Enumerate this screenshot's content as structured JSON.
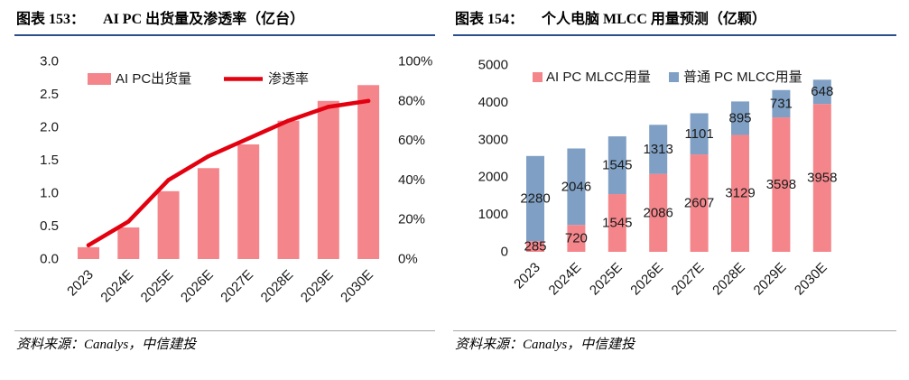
{
  "colors": {
    "title_rule": "#2B4E8C",
    "separator": "#A6A6A6",
    "text": "#1A1A1A"
  },
  "chart_data": [
    {
      "figure_label": "图表 153：",
      "title": "AI PC 出货量及渗透率（亿台）",
      "source": "资料来源：Canalys，中信建投",
      "type": "bar",
      "categories": [
        "2023",
        "2024E",
        "2025E",
        "2026E",
        "2027E",
        "2028E",
        "2029E",
        "2030E"
      ],
      "series": [
        {
          "name": "AI PC出货量",
          "type": "bar",
          "axis": "left",
          "values": [
            0.18,
            0.48,
            1.03,
            1.38,
            1.74,
            2.1,
            2.4,
            2.64
          ],
          "color": "#F4868B"
        },
        {
          "name": "渗透率",
          "type": "line",
          "axis": "right",
          "values": [
            7,
            19,
            40,
            52,
            61,
            70,
            77,
            80
          ],
          "color": "#E3000F"
        }
      ],
      "y_left": {
        "min": 0,
        "max": 3.0,
        "step": 0.5,
        "ticks": [
          "0.0",
          "0.5",
          "1.0",
          "1.5",
          "2.0",
          "2.5",
          "3.0"
        ]
      },
      "y_right": {
        "min": 0,
        "max": 100,
        "step": 20,
        "ticks": [
          "0%",
          "20%",
          "40%",
          "60%",
          "80%",
          "100%"
        ]
      },
      "legend": "top-left",
      "grid": false
    },
    {
      "figure_label": "图表 154：",
      "title": "个人电脑 MLCC 用量预测（亿颗）",
      "source": "资料来源：Canalys，中信建投",
      "type": "bar",
      "stacked": true,
      "categories": [
        "2023",
        "2024E",
        "2025E",
        "2026E",
        "2027E",
        "2028E",
        "2029E",
        "2030E"
      ],
      "series": [
        {
          "name": "AI PC MLCC用量",
          "values": [
            285,
            720,
            1545,
            2086,
            2607,
            3129,
            3598,
            3958
          ],
          "color": "#F4868B"
        },
        {
          "name": "普通 PC MLCC用量",
          "values": [
            2280,
            2046,
            1545,
            1313,
            1101,
            895,
            731,
            648
          ],
          "color": "#7FA0C4"
        }
      ],
      "y_axis": {
        "min": 0,
        "max": 5000,
        "step": 1000,
        "ticks": [
          "0",
          "1000",
          "2000",
          "3000",
          "4000",
          "5000"
        ]
      },
      "data_labels": true,
      "legend": "top-left",
      "grid": false
    }
  ]
}
